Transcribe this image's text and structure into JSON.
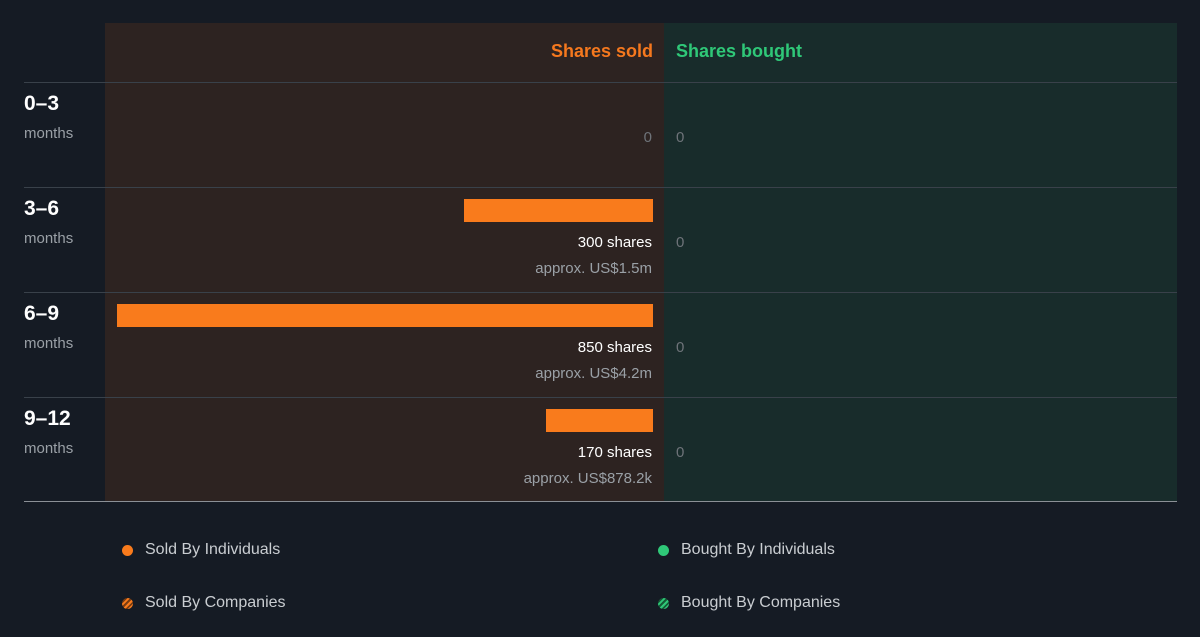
{
  "colors": {
    "sold": "#f97b1c",
    "bought": "#2fc878",
    "background": "#151b24"
  },
  "headers": {
    "sold": "Shares sold",
    "bought": "Shares bought"
  },
  "rows": [
    {
      "period": "0–3",
      "unit": "months",
      "sold_zero": "0",
      "bought_value": "0"
    },
    {
      "period": "3–6",
      "unit": "months",
      "sold_shares": "300 shares",
      "sold_approx": "approx. US$1.5m",
      "bought_value": "0"
    },
    {
      "period": "6–9",
      "unit": "months",
      "sold_shares": "850 shares",
      "sold_approx": "approx. US$4.2m",
      "bought_value": "0"
    },
    {
      "period": "9–12",
      "unit": "months",
      "sold_shares": "170 shares",
      "sold_approx": "approx. US$878.2k",
      "bought_value": "0"
    }
  ],
  "legend": {
    "sold_individuals": "Sold By Individuals",
    "sold_companies": "Sold By Companies",
    "bought_individuals": "Bought By Individuals",
    "bought_companies": "Bought By Companies"
  },
  "chart_data": {
    "type": "bar",
    "categories": [
      "0–3 months",
      "3–6 months",
      "6–9 months",
      "9–12 months"
    ],
    "series": [
      {
        "name": "Sold By Individuals",
        "values": [
          0,
          300,
          850,
          170
        ]
      },
      {
        "name": "Bought By Individuals",
        "values": [
          0,
          0,
          0,
          0
        ]
      }
    ],
    "value_labels": [
      "0",
      "approx. US$1.5m",
      "approx. US$4.2m",
      "approx. US$878.2k"
    ],
    "orientation": "horizontal",
    "legend_position": "bottom"
  }
}
